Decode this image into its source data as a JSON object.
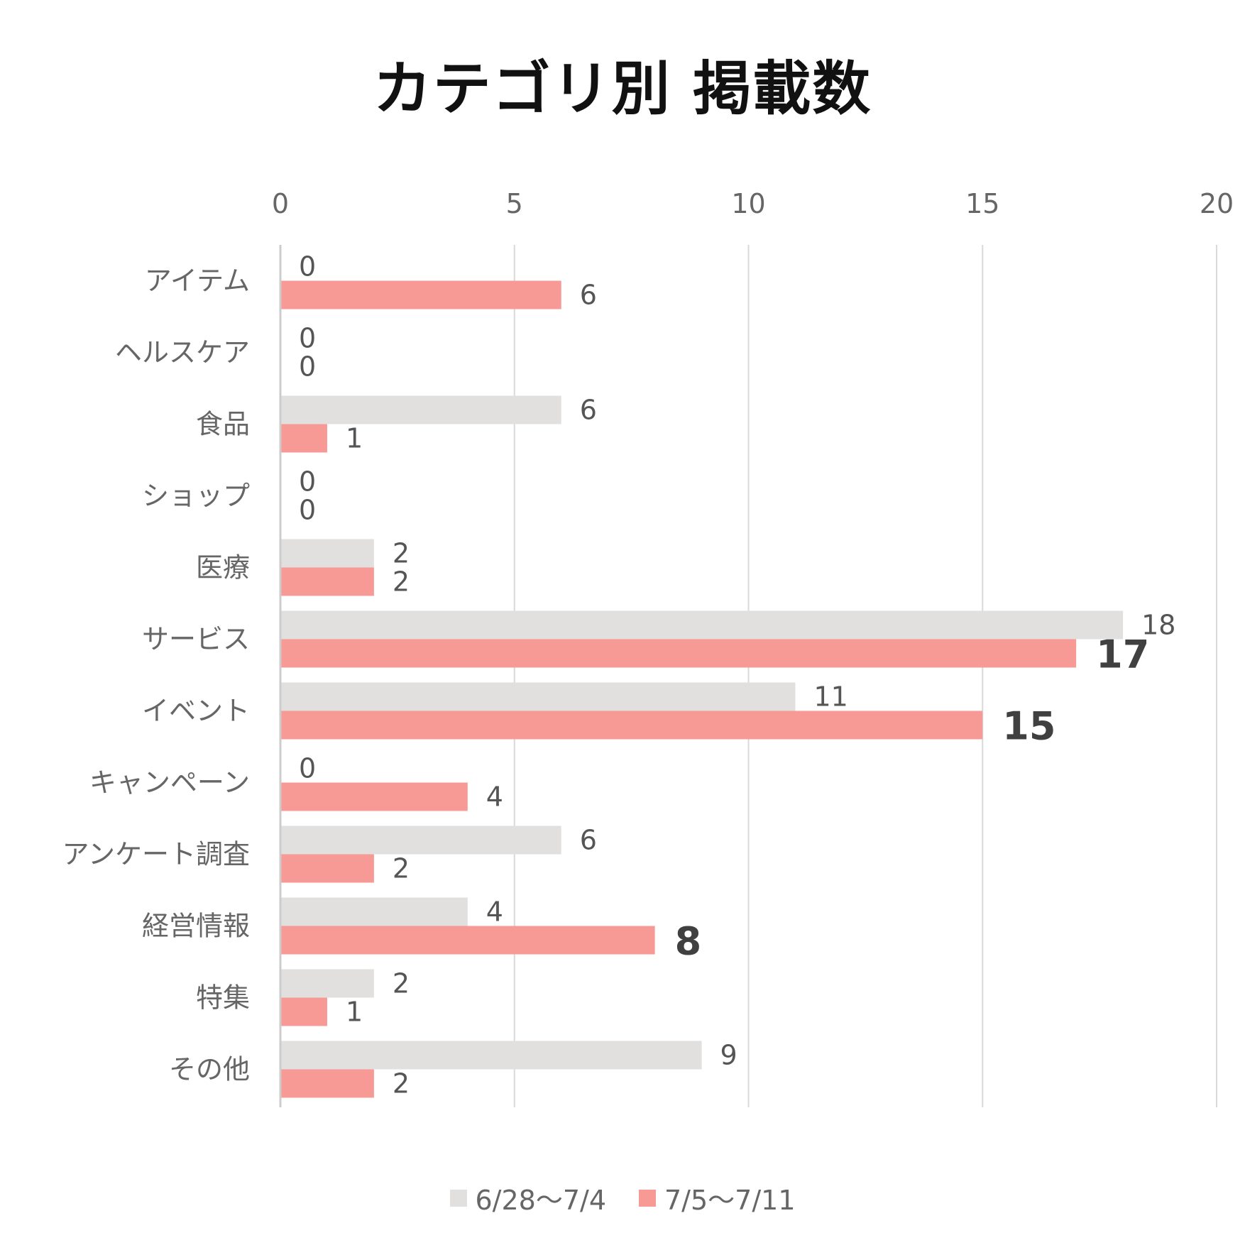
{
  "chart_data": {
    "type": "bar",
    "orientation": "horizontal",
    "title": "カテゴリ別 掲載数",
    "categories": [
      "アイテム",
      "ヘルスケア",
      "食品",
      "ショップ",
      "医療",
      "サービス",
      "イベント",
      "キャンペーン",
      "アンケート調査",
      "経営情報",
      "特集",
      "その他"
    ],
    "series": [
      {
        "name": "6/28〜7/4",
        "color": "#e2dfdf",
        "values": [
          0,
          0,
          6,
          0,
          2,
          18,
          11,
          0,
          6,
          4,
          2,
          9
        ]
      },
      {
        "name": "7/5〜7/11",
        "color": "#f79994",
        "values": [
          6,
          0,
          1,
          0,
          2,
          17,
          15,
          4,
          2,
          8,
          1,
          2
        ]
      }
    ],
    "emphasized_labels": [
      {
        "series": 1,
        "category": "サービス"
      },
      {
        "series": 1,
        "category": "イベント"
      },
      {
        "series": 1,
        "category": "経営情報"
      }
    ],
    "xlim": [
      0,
      20
    ],
    "xticks": [
      0,
      5,
      10,
      15,
      20
    ],
    "xaxis_position": "top",
    "grid": true,
    "gridline_color": "#d9d9d9",
    "legend_position": "bottom-center",
    "xlabel": "",
    "ylabel": ""
  }
}
